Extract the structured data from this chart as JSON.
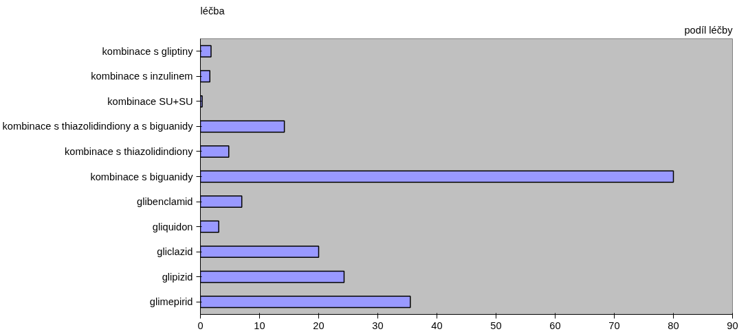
{
  "chart_data": {
    "type": "bar",
    "orientation": "horizontal",
    "xlabel": "podíl léčby",
    "ylabel": "léčba",
    "categories": [
      "kombinace s gliptiny",
      "kombinace s inzulinem",
      "kombinace SU+SU",
      "kombinace s thiazolidindiony a s biguanidy",
      "kombinace s thiazolidindiony",
      "kombinace s biguanidy",
      "glibenclamid",
      "gliquidon",
      "gliclazid",
      "glipizid",
      "glimepirid"
    ],
    "values": [
      1.8,
      1.6,
      0.3,
      14.2,
      4.8,
      80,
      7,
      3.1,
      20,
      24.3,
      35.5
    ],
    "color": "#9999ff",
    "xlim": [
      0,
      90
    ],
    "xticks": [
      0,
      10,
      20,
      30,
      40,
      50,
      60,
      70,
      80,
      90
    ],
    "grid": false
  }
}
